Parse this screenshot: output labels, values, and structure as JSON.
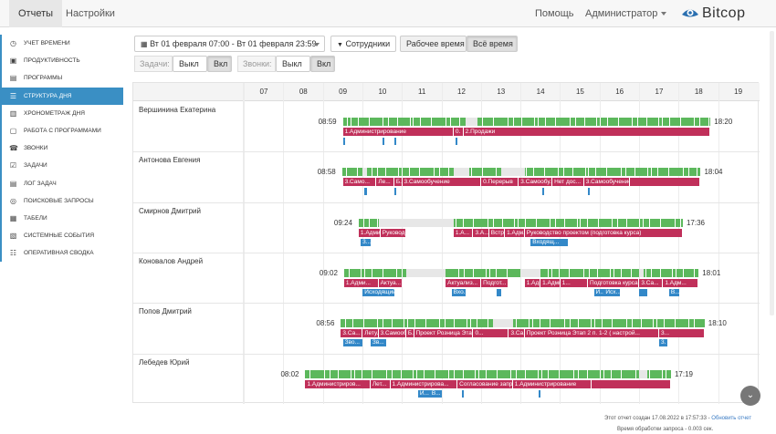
{
  "nav": {
    "tabs": [
      "Отчеты",
      "Настройки"
    ],
    "help": "Помощь",
    "user": "Администратор",
    "logo": "Bitcop"
  },
  "sidebar": {
    "items": [
      {
        "label": "УЧЕТ ВРЕМЕНИ",
        "icon": "clock-icon"
      },
      {
        "label": "ПРОДУКТИВНОСТЬ",
        "icon": "productivity-icon"
      },
      {
        "label": "ПРОГРАММЫ",
        "icon": "programs-icon"
      },
      {
        "label": "СТРУКТУРА ДНЯ",
        "icon": "day-structure-icon",
        "active": true
      },
      {
        "label": "ХРОНОМЕТРАЖ ДНЯ",
        "icon": "timeline-icon"
      },
      {
        "label": "РАБОТА С ПРОГРАММАМИ",
        "icon": "window-icon"
      },
      {
        "label": "ЗВОНКИ",
        "icon": "phone-icon"
      },
      {
        "label": "ЗАДАЧИ",
        "icon": "tasks-icon"
      },
      {
        "label": "ЛОГ ЗАДАЧ",
        "icon": "task-log-icon"
      },
      {
        "label": "ПОИСКОВЫЕ ЗАПРОСЫ",
        "icon": "binoculars-icon"
      },
      {
        "label": "ТАБЕЛИ",
        "icon": "timesheet-icon"
      },
      {
        "label": "СИСТЕМНЫЕ СОБЫТИЯ",
        "icon": "system-events-icon"
      },
      {
        "label": "ОПЕРАТИВНАЯ СВОДКА",
        "icon": "summary-icon"
      }
    ]
  },
  "toolbar": {
    "date_range": "Вт 01 февраля 07:00 - Вт 01 февраля 23:59",
    "employees": "Сотрудники",
    "work_time": "Рабочее время",
    "all_time": "Всё время",
    "tasks_label": "Задачи:",
    "calls_label": "Звонки:",
    "off": "Выкл",
    "on": "Вкл"
  },
  "grid": {
    "hours": [
      "07",
      "08",
      "09",
      "10",
      "11",
      "12",
      "13",
      "14",
      "15",
      "16",
      "17",
      "18",
      "19"
    ]
  },
  "rows": [
    {
      "name": "Вершинина Екатерина",
      "start": "08:59",
      "end": "18:20",
      "activity": [
        [
          9.0,
          18.3
        ]
      ],
      "gaps": [
        [
          12.1,
          12.4
        ]
      ],
      "tasks": [
        {
          "from": 9.0,
          "to": 11.8,
          "label": "1.Администрирование"
        },
        {
          "from": 11.8,
          "to": 12.05,
          "label": "0."
        },
        {
          "from": 12.05,
          "to": 18.3,
          "label": "2.Продажи"
        }
      ],
      "calls": [
        {
          "from": 9.0,
          "to": 9.05,
          "label": "0"
        },
        {
          "from": 10.0,
          "to": 10.03,
          "label": ""
        },
        {
          "from": 10.3,
          "to": 10.33,
          "label": ""
        },
        {
          "from": 11.85,
          "to": 11.88,
          "label": ""
        }
      ]
    },
    {
      "name": "Антонова Евгения",
      "start": "08:58",
      "end": "18:04",
      "activity": [
        [
          8.98,
          18.05
        ]
      ],
      "gaps": [
        [
          9.5,
          9.6
        ],
        [
          11.8,
          12.2
        ],
        [
          13.0,
          13.6
        ]
      ],
      "tasks": [
        {
          "from": 9.0,
          "to": 9.85,
          "label": "3.Само..."
        },
        {
          "from": 9.85,
          "to": 10.3,
          "label": "Ле..."
        },
        {
          "from": 10.3,
          "to": 10.5,
          "label": "Б..."
        },
        {
          "from": 10.5,
          "to": 12.5,
          "label": "3.Самообучение"
        },
        {
          "from": 12.5,
          "to": 13.45,
          "label": "0.Перерыв"
        },
        {
          "from": 13.45,
          "to": 14.3,
          "label": "3.Самообу..."
        },
        {
          "from": 14.3,
          "to": 15.1,
          "label": "Нет дос..."
        },
        {
          "from": 15.1,
          "to": 16.25,
          "label": "3.Самообучение"
        },
        {
          "from": 16.25,
          "to": 18.05,
          "label": ""
        }
      ],
      "calls": [
        {
          "from": 9.55,
          "to": 9.6,
          "label": ""
        },
        {
          "from": 10.3,
          "to": 10.35,
          "label": ""
        },
        {
          "from": 14.05,
          "to": 14.1,
          "label": ""
        },
        {
          "from": 15.2,
          "to": 15.25,
          "label": ""
        }
      ]
    },
    {
      "name": "Смирнов Дмитрий",
      "start": "09:24",
      "end": "17:36",
      "activity": [
        [
          9.4,
          17.6
        ]
      ],
      "gaps": [
        [
          9.9,
          11.8
        ]
      ],
      "tasks": [
        {
          "from": 9.4,
          "to": 9.95,
          "label": "1.Адми..."
        },
        {
          "from": 9.95,
          "to": 10.6,
          "label": "Руководс..."
        },
        {
          "from": 11.8,
          "to": 12.3,
          "label": "1.А..."
        },
        {
          "from": 12.3,
          "to": 12.7,
          "label": "3.А..."
        },
        {
          "from": 12.7,
          "to": 13.1,
          "label": "Встр..."
        },
        {
          "from": 13.1,
          "to": 13.6,
          "label": "1.Адм..."
        },
        {
          "from": 13.6,
          "to": 17.6,
          "label": "Руководство проектом (подготовка курса)"
        }
      ],
      "calls": [
        {
          "from": 9.45,
          "to": 9.7,
          "label": "3..."
        },
        {
          "from": 13.75,
          "to": 14.7,
          "label": "Входящ..."
        }
      ]
    },
    {
      "name": "Коновалов Андрей",
      "start": "09:02",
      "end": "18:01",
      "activity": [
        [
          9.03,
          18.0
        ]
      ],
      "gaps": [
        [
          10.6,
          11.6
        ],
        [
          13.5,
          14.0
        ],
        [
          16.5,
          16.6
        ]
      ],
      "tasks": [
        {
          "from": 9.03,
          "to": 9.9,
          "label": "1.Адми..."
        },
        {
          "from": 9.9,
          "to": 10.5,
          "label": "Актуа..."
        },
        {
          "from": 11.6,
          "to": 12.5,
          "label": "Актуализ..."
        },
        {
          "from": 12.5,
          "to": 13.2,
          "label": "Подгот..."
        },
        {
          "from": 13.6,
          "to": 14.0,
          "label": "1.Адми"
        },
        {
          "from": 14.0,
          "to": 14.5,
          "label": "1.Администр..."
        },
        {
          "from": 14.5,
          "to": 15.2,
          "label": "1..."
        },
        {
          "from": 15.2,
          "to": 16.5,
          "label": "Подготовка курса по..."
        },
        {
          "from": 16.5,
          "to": 17.1,
          "label": "3.Са..."
        },
        {
          "from": 17.1,
          "to": 18.0,
          "label": "1.Адм..."
        }
      ],
      "calls": [
        {
          "from": 9.5,
          "to": 10.3,
          "label": "Исходящий..."
        },
        {
          "from": 11.75,
          "to": 12.1,
          "label": "Вхо..."
        },
        {
          "from": 12.9,
          "to": 13.0,
          "label": ""
        },
        {
          "from": 15.35,
          "to": 15.6,
          "label": "И..."
        },
        {
          "from": 15.6,
          "to": 16.0,
          "label": "Исх..."
        },
        {
          "from": 16.5,
          "to": 16.7,
          "label": ""
        },
        {
          "from": 17.25,
          "to": 17.5,
          "label": "В..."
        }
      ]
    },
    {
      "name": "Попов Дмитрий",
      "start": "08:56",
      "end": "18:10",
      "activity": [
        [
          8.95,
          18.15
        ]
      ],
      "gaps": [
        [
          12.8,
          13.3
        ]
      ],
      "tasks": [
        {
          "from": 8.95,
          "to": 9.5,
          "label": "3.Са..."
        },
        {
          "from": 9.5,
          "to": 9.9,
          "label": "Лету..."
        },
        {
          "from": 9.9,
          "to": 10.6,
          "label": "3.Самообу..."
        },
        {
          "from": 10.6,
          "to": 10.8,
          "label": "Б..."
        },
        {
          "from": 10.8,
          "to": 12.3,
          "label": "Проект Розница Этап 2 п.1-2 ..."
        },
        {
          "from": 12.3,
          "to": 13.2,
          "label": "0..."
        },
        {
          "from": 13.2,
          "to": 13.6,
          "label": "3.Са..."
        },
        {
          "from": 13.6,
          "to": 17.0,
          "label": "Проект Розница Этап 2 п. 1-2 ( настрой..."
        },
        {
          "from": 17.0,
          "to": 18.15,
          "label": "3..."
        }
      ],
      "calls": [
        {
          "from": 9.0,
          "to": 9.5,
          "label": "Зво..."
        },
        {
          "from": 9.7,
          "to": 10.1,
          "label": "Зв..."
        },
        {
          "from": 17.0,
          "to": 17.2,
          "label": "3."
        }
      ]
    },
    {
      "name": "Лебедев Юрий",
      "start": "08:02",
      "end": "17:19",
      "activity": [
        [
          8.05,
          17.3
        ]
      ],
      "gaps": [
        [
          16.5,
          16.7
        ]
      ],
      "tasks": [
        {
          "from": 8.05,
          "to": 9.7,
          "label": "1.Администриров..."
        },
        {
          "from": 9.7,
          "to": 10.2,
          "label": "Лет..."
        },
        {
          "from": 10.2,
          "to": 11.9,
          "label": "1.Администрирова..."
        },
        {
          "from": 11.9,
          "to": 13.3,
          "label": "Согласование запрос..."
        },
        {
          "from": 13.3,
          "to": 15.3,
          "label": "1.Администрирование"
        },
        {
          "from": 15.3,
          "to": 17.3,
          "label": ""
        }
      ],
      "calls": [
        {
          "from": 10.9,
          "to": 11.2,
          "label": "И..."
        },
        {
          "from": 11.2,
          "to": 11.5,
          "label": "В..."
        },
        {
          "from": 12.0,
          "to": 12.05,
          "label": ""
        },
        {
          "from": 13.95,
          "to": 14.0,
          "label": "3"
        }
      ]
    }
  ],
  "footer": {
    "created": "Этот отчет создан 17.08.2022 в 17:57:33 -",
    "refresh": "Обновить отчет",
    "processing": "Время обработки запроса - 0.003 сек."
  },
  "colors": {
    "accent": "#3a8fc4",
    "activity": "#5cb85c",
    "task": "#c0305a",
    "call": "#3388c8"
  }
}
